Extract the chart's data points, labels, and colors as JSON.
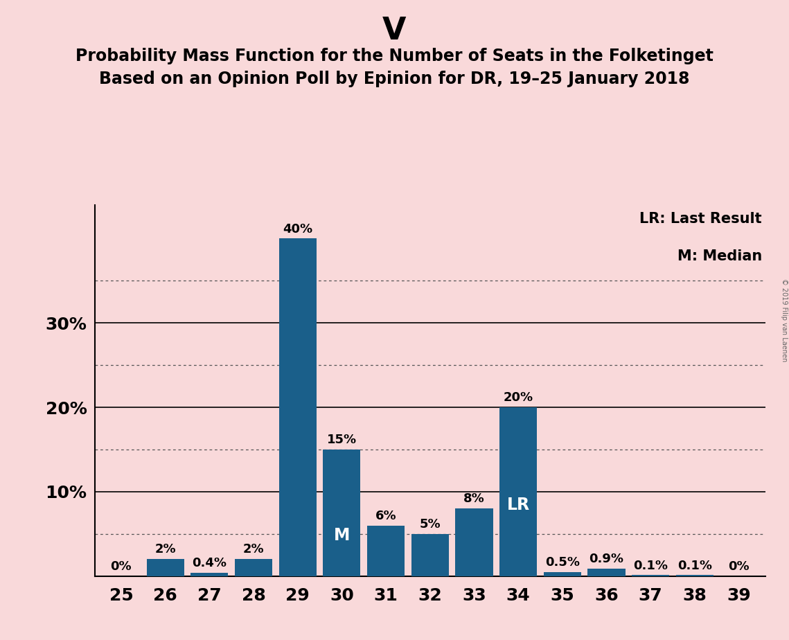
{
  "title": "V",
  "subtitle1": "Probability Mass Function for the Number of Seats in the Folketinget",
  "subtitle2": "Based on an Opinion Poll by Epinion for DR, 19–25 January 2018",
  "categories": [
    25,
    26,
    27,
    28,
    29,
    30,
    31,
    32,
    33,
    34,
    35,
    36,
    37,
    38,
    39
  ],
  "values": [
    0.0,
    2.0,
    0.4,
    2.0,
    40.0,
    15.0,
    6.0,
    5.0,
    8.0,
    20.0,
    0.5,
    0.9,
    0.1,
    0.1,
    0.0
  ],
  "labels": [
    "0%",
    "2%",
    "0.4%",
    "2%",
    "40%",
    "15%",
    "6%",
    "5%",
    "8%",
    "20%",
    "0.5%",
    "0.9%",
    "0.1%",
    "0.1%",
    "0%"
  ],
  "bar_color": "#1a5f8a",
  "background_color": "#f9d9da",
  "median_seat": 30,
  "lr_seat": 34,
  "legend_text1": "LR: Last Result",
  "legend_text2": "M: Median",
  "copyright_text": "© 2019 Filip van Laenen",
  "ytick_values": [
    10,
    20,
    30
  ],
  "ytick_labels": [
    "10%",
    "20%",
    "30%"
  ],
  "solid_yticks": [
    10,
    20,
    30
  ],
  "dotted_yticks": [
    5,
    15,
    25,
    35
  ],
  "ylim_max": 44,
  "title_fontsize": 32,
  "subtitle_fontsize": 17,
  "tick_fontsize": 18,
  "label_fontsize": 13,
  "legend_fontsize": 15,
  "inner_label_fontsize": 17
}
